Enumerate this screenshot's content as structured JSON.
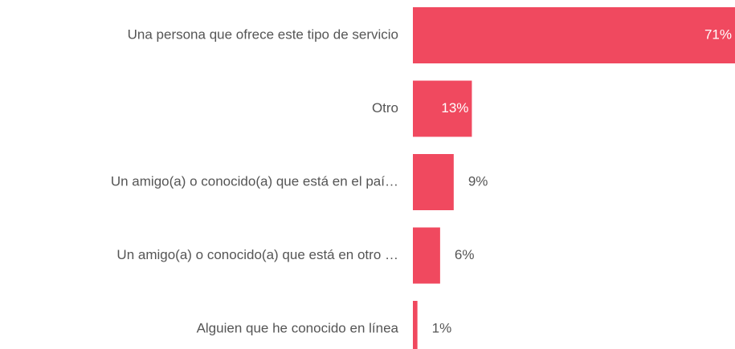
{
  "chart_data": {
    "type": "hbar",
    "categories": [
      "Una persona que ofrece este tipo de servicio",
      "Otro",
      "Un amigo(a) o conocido(a) que está en el paí…",
      "Un amigo(a) o conocido(a) que está en otro …",
      "Alguien que he conocido en línea"
    ],
    "values": [
      71,
      13,
      9,
      6,
      1
    ],
    "value_labels": [
      "71%",
      "13%",
      "9%",
      "6%",
      "1%"
    ],
    "color": "#f0495f"
  }
}
